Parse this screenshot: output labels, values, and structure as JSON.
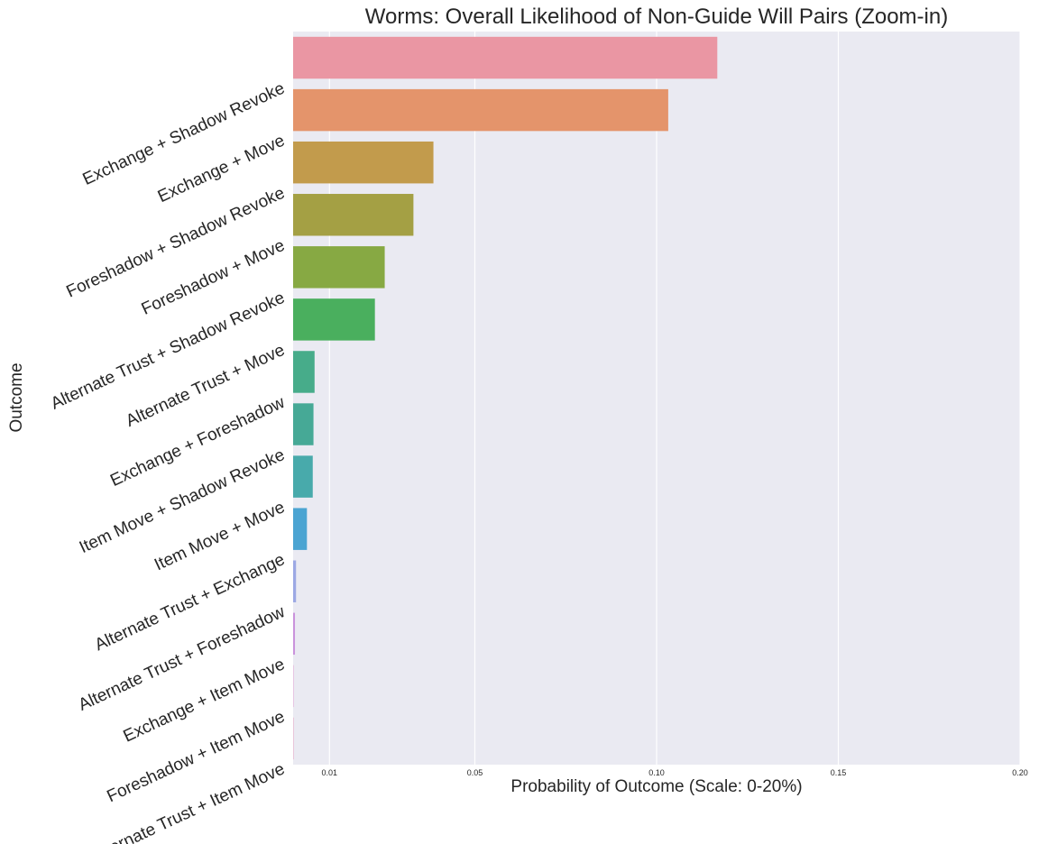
{
  "chart_data": {
    "type": "bar",
    "orientation": "horizontal",
    "title": "Worms: Overall Likelihood of Non-Guide Will Pairs (Zoom-in)",
    "xlabel": "Probability of Outcome (Scale: 0-20%)",
    "ylabel": "Outcome",
    "xlim": [
      0,
      0.2
    ],
    "xticks": [
      0.01,
      0.05,
      0.1,
      0.15,
      0.2
    ],
    "xtick_labels": [
      "0.01",
      "0.05",
      "0.10",
      "0.15",
      "0.20"
    ],
    "grid": true,
    "background": "#eaeaf2",
    "categories": [
      "Exchange + Shadow Revoke",
      "Exchange + Move",
      "Foreshadow + Shadow Revoke",
      "Foreshadow + Move",
      "Alternate Trust + Shadow Revoke",
      "Alternate Trust + Move",
      "Exchange + Foreshadow",
      "Item Move + Shadow Revoke",
      "Item Move + Move",
      "Alternate Trust + Exchange",
      "Alternate Trust + Foreshadow",
      "Exchange + Item Move",
      "Foreshadow + Item Move",
      "Alternate Trust + Item Move"
    ],
    "values": [
      0.1167,
      0.1032,
      0.0386,
      0.0331,
      0.0252,
      0.0225,
      0.0059,
      0.0056,
      0.0054,
      0.0038,
      0.0008,
      0.0005,
      0.0001,
      0.0001
    ],
    "colors": [
      "#ea96a3",
      "#e4946b",
      "#c29b4c",
      "#a4a044",
      "#87a943",
      "#4aaf5e",
      "#47ac8a",
      "#46a996",
      "#48aaab",
      "#4ba4d2",
      "#9ca8e4",
      "#ca93dc",
      "#e392cd",
      "#e892b5"
    ]
  }
}
